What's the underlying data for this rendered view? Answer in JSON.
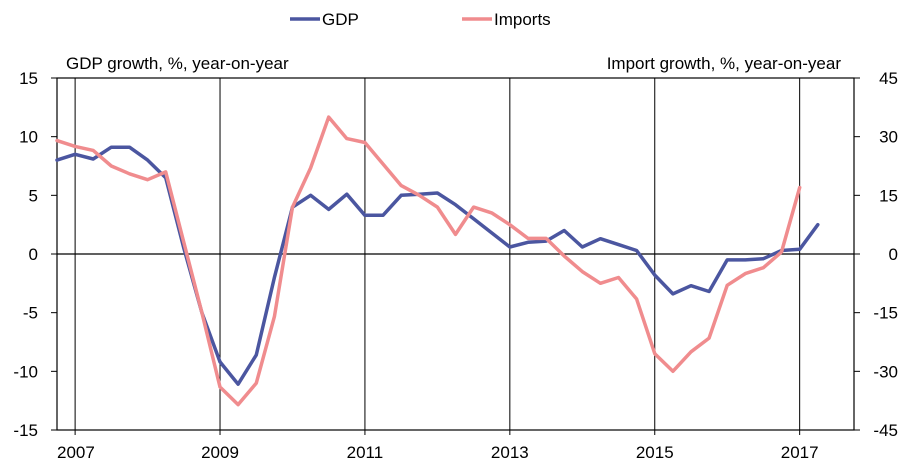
{
  "chart_data": {
    "type": "line",
    "legend": {
      "placement": "top-center",
      "entries": [
        "GDP",
        "Imports"
      ]
    },
    "left_axis": {
      "label": "GDP growth, %, year-on-year",
      "range": [
        -15,
        15
      ],
      "ticks": [
        -15,
        -10,
        -5,
        0,
        5,
        10,
        15
      ]
    },
    "right_axis": {
      "label": "Import growth, %, year-on-year",
      "range": [
        -45,
        45
      ],
      "ticks": [
        -45,
        -30,
        -15,
        0,
        15,
        30,
        45
      ]
    },
    "x_axis": {
      "range": [
        2006.75,
        2017.75
      ],
      "tick_labels": [
        "2007",
        "2009",
        "2011",
        "2013",
        "2015",
        "2017"
      ],
      "tick_values": [
        2007,
        2009,
        2011,
        2013,
        2015,
        2017
      ]
    },
    "grid": {
      "vertical": true,
      "horizontal": false,
      "zero_line": true
    },
    "series": [
      {
        "name": "GDP",
        "axis": "left",
        "color": "#4b56a0",
        "x": [
          2006.75,
          2007.0,
          2007.25,
          2007.5,
          2007.75,
          2008.0,
          2008.25,
          2008.5,
          2008.75,
          2009.0,
          2009.25,
          2009.5,
          2009.75,
          2010.0,
          2010.25,
          2010.5,
          2010.75,
          2011.0,
          2011.25,
          2011.5,
          2011.75,
          2012.0,
          2012.25,
          2012.5,
          2012.75,
          2013.0,
          2013.25,
          2013.5,
          2013.75,
          2014.0,
          2014.25,
          2014.5,
          2014.75,
          2015.0,
          2015.25,
          2015.5,
          2015.75,
          2016.0,
          2016.25,
          2016.5,
          2016.75,
          2017.0,
          2017.25
        ],
        "values": [
          8.0,
          8.5,
          8.1,
          9.1,
          9.1,
          8.0,
          6.5,
          0.5,
          -5.0,
          -9.2,
          -11.1,
          -8.6,
          -2.0,
          4.0,
          5.0,
          3.8,
          5.1,
          3.3,
          3.3,
          5.0,
          5.1,
          5.2,
          4.2,
          3.0,
          1.8,
          0.6,
          1.0,
          1.1,
          2.0,
          0.6,
          1.3,
          0.8,
          0.3,
          -1.8,
          -3.4,
          -2.7,
          -3.2,
          -0.5,
          -0.5,
          -0.4,
          0.3,
          0.4,
          2.5
        ]
      },
      {
        "name": "Imports",
        "axis": "right",
        "color": "#f08c8e",
        "x": [
          2006.75,
          2007.0,
          2007.25,
          2007.5,
          2007.75,
          2008.0,
          2008.25,
          2008.5,
          2008.75,
          2009.0,
          2009.25,
          2009.5,
          2009.75,
          2010.0,
          2010.25,
          2010.5,
          2010.75,
          2011.0,
          2011.25,
          2011.5,
          2011.75,
          2012.0,
          2012.25,
          2012.5,
          2012.75,
          2013.0,
          2013.25,
          2013.5,
          2013.75,
          2014.0,
          2014.25,
          2014.5,
          2014.75,
          2015.0,
          2015.25,
          2015.5,
          2015.75,
          2016.0,
          2016.25,
          2016.5,
          2016.75,
          2017.0
        ],
        "values": [
          29,
          27.5,
          26.5,
          22.5,
          20.5,
          19,
          21,
          3,
          -15,
          -34,
          -38.5,
          -33,
          -16,
          12,
          22,
          35,
          29.5,
          28.5,
          23,
          17.5,
          15,
          12,
          5,
          12,
          10.5,
          7.5,
          4,
          4,
          -0.5,
          -4.5,
          -7.5,
          -6,
          -11.5,
          -25.5,
          -30,
          -25,
          -21.5,
          -8,
          -5,
          -3.5,
          0.5,
          17
        ]
      }
    ]
  }
}
